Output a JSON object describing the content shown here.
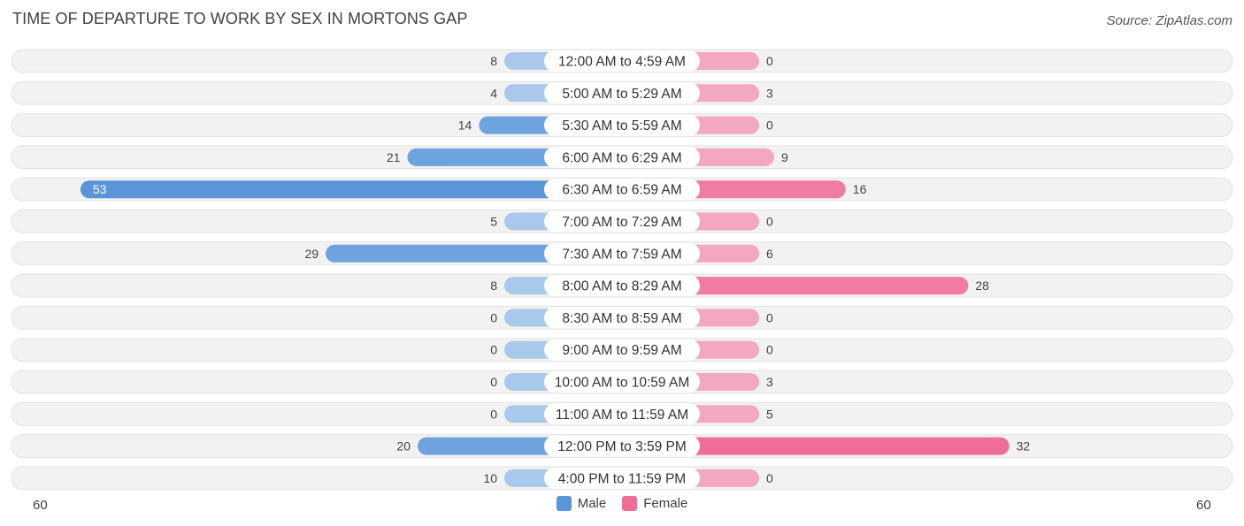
{
  "header": {
    "title": "TIME OF DEPARTURE TO WORK BY SEX IN MORTONS GAP",
    "source": "Source: ZipAtlas.com"
  },
  "legend": {
    "male_label": "Male",
    "female_label": "Female"
  },
  "axis": {
    "left_label": "60",
    "right_label": "60"
  },
  "colors": {
    "male": "#6fa3dd",
    "male_light": "#a9c8ec",
    "male_strong": "#5b95d9",
    "female": "#f07ca1",
    "female_light": "#f4a7c0",
    "female_strong": "#ef6d97",
    "row_bg": "#f2f2f2"
  },
  "chart_data": {
    "type": "bar",
    "orientation": "horizontal-diverging",
    "categories": [
      "12:00 AM to 4:59 AM",
      "5:00 AM to 5:29 AM",
      "5:30 AM to 5:59 AM",
      "6:00 AM to 6:29 AM",
      "6:30 AM to 6:59 AM",
      "7:00 AM to 7:29 AM",
      "7:30 AM to 7:59 AM",
      "8:00 AM to 8:29 AM",
      "8:30 AM to 8:59 AM",
      "9:00 AM to 9:59 AM",
      "10:00 AM to 10:59 AM",
      "11:00 AM to 11:59 AM",
      "12:00 PM to 3:59 PM",
      "4:00 PM to 11:59 PM"
    ],
    "series": [
      {
        "name": "Male",
        "values": [
          8,
          4,
          14,
          21,
          53,
          5,
          29,
          8,
          0,
          0,
          0,
          0,
          20,
          10
        ]
      },
      {
        "name": "Female",
        "values": [
          0,
          3,
          0,
          9,
          16,
          0,
          6,
          28,
          0,
          0,
          3,
          5,
          32,
          0
        ]
      }
    ],
    "xlim": [
      -60,
      60
    ],
    "legend_position": "bottom-center",
    "grid": false
  }
}
